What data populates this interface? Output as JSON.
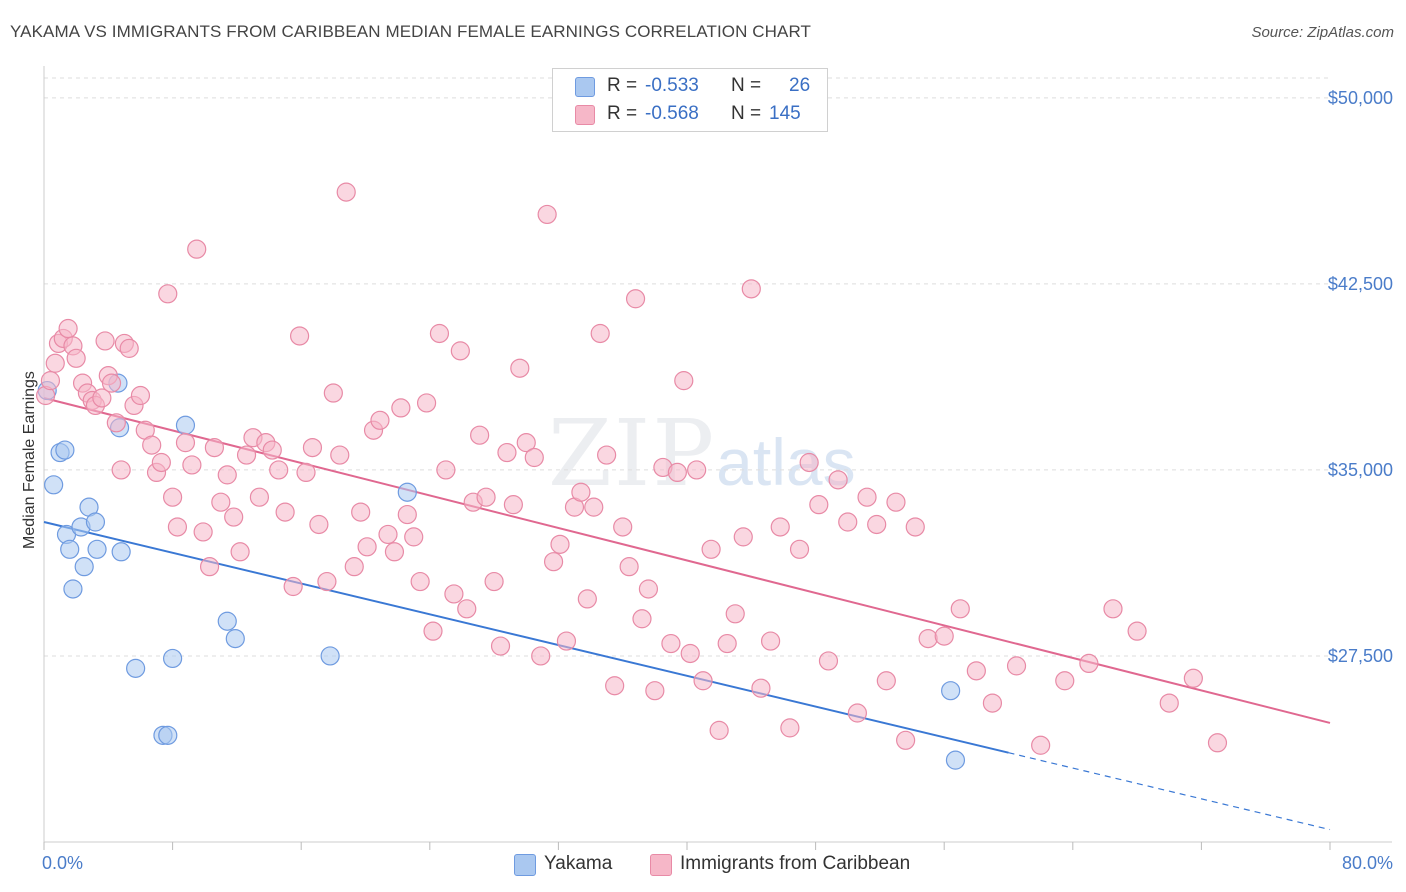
{
  "title": "YAKAMA VS IMMIGRANTS FROM CARIBBEAN MEDIAN FEMALE EARNINGS CORRELATION CHART",
  "source": "Source: ZipAtlas.com",
  "watermark": {
    "zip": "ZIP",
    "atlas": "atlas"
  },
  "legend": {
    "rows": [
      {
        "r_label": "R =",
        "r_value": "-0.533",
        "n_label": "N =",
        "n_value": "26",
        "color": "#aac8f0"
      },
      {
        "r_label": "R =",
        "r_value": "-0.568",
        "n_label": "N =",
        "n_value": "145",
        "color": "#f6b7c8"
      }
    ]
  },
  "bottom_legend": [
    {
      "label": "Yakama",
      "color": "#aac8f0"
    },
    {
      "label": "Immigrants from Caribbean",
      "color": "#f6b7c8"
    }
  ],
  "chart_data": {
    "type": "scatter",
    "title": "YAKAMA VS IMMIGRANTS FROM CARIBBEAN MEDIAN FEMALE EARNINGS CORRELATION CHART",
    "xlabel": "",
    "ylabel": "Median Female Earnings",
    "xlim": [
      0,
      80
    ],
    "ylim": [
      20000,
      50800
    ],
    "x_tick_labels": [
      "0.0%",
      "80.0%"
    ],
    "y_ticks": [
      27500,
      35000,
      42500,
      50000
    ],
    "y_tick_labels": [
      "$27,500",
      "$35,000",
      "$42,500",
      "$50,000"
    ],
    "grid": true,
    "legend_position": "top-center",
    "series": [
      {
        "name": "Yakama",
        "color": "#aac8f0",
        "stroke": "#6f9be0",
        "trend_color": "#3a78d4",
        "trend": {
          "x0": 0,
          "y0": 32900,
          "x1": 60,
          "y1": 23600,
          "dash_to_x": 80,
          "dash_to_y": 20500
        },
        "x": [
          0.2,
          0.6,
          1.0,
          1.3,
          1.4,
          1.6,
          1.8,
          2.3,
          2.5,
          2.8,
          3.2,
          3.3,
          4.6,
          4.7,
          4.8,
          5.7,
          7.4,
          7.7,
          8.0,
          8.8,
          11.4,
          11.9,
          17.8,
          22.6,
          56.4,
          56.7
        ],
        "y": [
          38200,
          34400,
          35700,
          35800,
          32400,
          31800,
          30200,
          32700,
          31100,
          33500,
          32900,
          31800,
          38500,
          36700,
          31700,
          27000,
          24300,
          24300,
          27400,
          36800,
          28900,
          28200,
          27500,
          34100,
          26100,
          23300
        ]
      },
      {
        "name": "Immigrants from Caribbean",
        "color": "#f6b7c8",
        "stroke": "#e88aa6",
        "trend_color": "#e06890",
        "trend": {
          "x0": 0,
          "y0": 37900,
          "x1": 80,
          "y1": 24800
        },
        "x": [
          0.1,
          0.4,
          0.7,
          0.9,
          1.2,
          1.5,
          1.8,
          2.0,
          2.4,
          2.7,
          3.0,
          3.2,
          3.6,
          3.8,
          4.0,
          4.2,
          4.5,
          4.8,
          5.0,
          5.3,
          5.6,
          6.0,
          6.3,
          6.7,
          7.0,
          7.3,
          7.7,
          8.0,
          8.3,
          8.8,
          9.2,
          9.5,
          9.9,
          10.3,
          10.6,
          11.0,
          11.4,
          11.8,
          12.2,
          12.6,
          13.0,
          13.4,
          13.8,
          14.2,
          14.6,
          15.0,
          15.5,
          15.9,
          16.3,
          16.7,
          17.1,
          17.6,
          18.0,
          18.4,
          18.8,
          19.3,
          19.7,
          20.1,
          20.5,
          20.9,
          21.4,
          21.8,
          22.2,
          22.6,
          23.0,
          23.4,
          23.8,
          24.2,
          24.6,
          25.0,
          25.5,
          25.9,
          26.3,
          26.7,
          27.1,
          27.5,
          28.0,
          28.4,
          28.8,
          29.2,
          29.6,
          30.0,
          30.5,
          30.9,
          31.3,
          31.7,
          32.1,
          32.5,
          33.0,
          33.4,
          33.8,
          34.2,
          34.6,
          35.0,
          35.5,
          36.0,
          36.4,
          36.8,
          37.2,
          37.6,
          38.0,
          38.5,
          39.0,
          39.4,
          39.8,
          40.2,
          40.6,
          41.0,
          41.5,
          42.0,
          42.5,
          43.0,
          43.5,
          44.0,
          44.6,
          45.2,
          45.8,
          46.4,
          47.0,
          47.6,
          48.2,
          48.8,
          49.4,
          50.0,
          50.6,
          51.2,
          51.8,
          52.4,
          53.0,
          53.6,
          54.2,
          55.0,
          56.0,
          57.0,
          58.0,
          59.0,
          60.5,
          62.0,
          63.5,
          65.0,
          66.5,
          68.0,
          70.0,
          71.5,
          73.0
        ],
        "y": [
          38000,
          38600,
          39300,
          40100,
          40300,
          40700,
          40000,
          39500,
          38500,
          38100,
          37800,
          37600,
          37900,
          40200,
          38800,
          38500,
          36900,
          35000,
          40100,
          39900,
          37600,
          38000,
          36600,
          36000,
          34900,
          35300,
          42100,
          33900,
          32700,
          36100,
          35200,
          43900,
          32500,
          31100,
          35900,
          33700,
          34800,
          33100,
          31700,
          35600,
          36300,
          33900,
          36100,
          35800,
          35000,
          33300,
          30300,
          40400,
          34900,
          35900,
          32800,
          30500,
          38100,
          35600,
          46200,
          31100,
          33300,
          31900,
          36600,
          37000,
          32400,
          31700,
          37500,
          33200,
          32300,
          30500,
          37700,
          28500,
          40500,
          35000,
          30000,
          39800,
          29400,
          33700,
          36400,
          33900,
          30500,
          27900,
          35700,
          33600,
          39100,
          36100,
          35500,
          27500,
          45300,
          31300,
          32000,
          28100,
          33500,
          34100,
          29800,
          33500,
          40500,
          35600,
          26300,
          32700,
          31100,
          41900,
          29000,
          30200,
          26100,
          35100,
          28000,
          34900,
          38600,
          27600,
          35000,
          26500,
          31800,
          24500,
          28000,
          29200,
          32300,
          42300,
          26200,
          28100,
          32700,
          24600,
          31800,
          35300,
          33600,
          27300,
          34600,
          32900,
          25200,
          33900,
          32800,
          26500,
          33700,
          24100,
          32700,
          28200,
          28300,
          29400,
          26900,
          25600,
          27100,
          23900,
          26500,
          27200,
          29400,
          28500,
          25600,
          26600,
          24000
        ]
      }
    ]
  }
}
